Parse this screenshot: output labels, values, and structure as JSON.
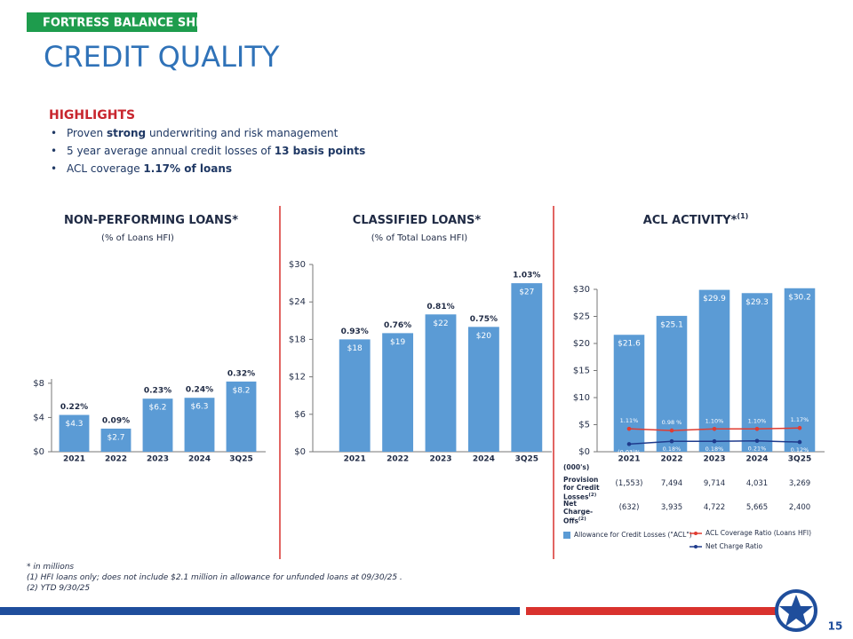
{
  "header": {
    "tag": "FORTRESS BALANCE SHEET",
    "title": "CREDIT QUALITY"
  },
  "highlights": {
    "title": "HIGHLIGHTS",
    "bullets": [
      [
        {
          "text": "Proven "
        },
        {
          "text": "strong",
          "bold": true
        },
        {
          "text": " underwriting and risk management"
        }
      ],
      [
        {
          "text": "5 year average annual credit losses of "
        },
        {
          "text": "13 basis points",
          "bold": true
        }
      ],
      [
        {
          "text": "ACL coverage "
        },
        {
          "text": "1.17% of loans",
          "bold": true
        }
      ]
    ]
  },
  "chart_data": [
    {
      "type": "bar",
      "title": "NON-PERFORMING LOANS*",
      "subtitle": "(% of Loans HFI)",
      "categories": [
        "2021",
        "2022",
        "2023",
        "2024",
        "3Q25"
      ],
      "values": [
        4.3,
        2.7,
        6.2,
        6.3,
        8.2
      ],
      "value_labels": [
        "$4.3",
        "$2.7",
        "$6.2",
        "$6.3",
        "$8.2"
      ],
      "color": "#5b9bd5",
      "ratios": [
        0.22,
        0.09,
        0.23,
        0.24,
        0.32
      ],
      "ratio_labels": [
        "0.22%",
        "0.09%",
        "0.23%",
        "0.24%",
        "0.32%"
      ],
      "ylim": [
        0,
        8.5
      ],
      "yticks": [
        {
          "value": 0,
          "label": "$0"
        },
        {
          "value": 4,
          "label": "$4"
        },
        {
          "value": 8,
          "label": "$8"
        }
      ]
    },
    {
      "type": "bar",
      "title": "CLASSIFIED LOANS*",
      "subtitle": "(% of Total Loans HFI)",
      "categories": [
        "2021",
        "2022",
        "2023",
        "2024",
        "3Q25"
      ],
      "values": [
        18,
        19,
        22,
        20,
        27
      ],
      "value_labels": [
        "$18",
        "$19",
        "$22",
        "$20",
        "$27"
      ],
      "color": "#5b9bd5",
      "ratios": [
        0.93,
        0.76,
        0.81,
        0.75,
        1.03
      ],
      "ratio_labels": [
        "0.93%",
        "0.76%",
        "0.81%",
        "0.75%",
        "1.03%"
      ],
      "ylim": [
        0,
        30
      ],
      "yticks": [
        {
          "value": 0,
          "label": "$0"
        },
        {
          "value": 6,
          "label": "$6"
        },
        {
          "value": 12,
          "label": "$12"
        },
        {
          "value": 18,
          "label": "$18"
        },
        {
          "value": 24,
          "label": "$24"
        },
        {
          "value": 30,
          "label": "$30"
        }
      ]
    },
    {
      "type": "bar",
      "title": "ACL ACTIVITY*",
      "title_note": "(1)",
      "categories": [
        "2021",
        "2022",
        "2023",
        "2024",
        "3Q25"
      ],
      "series": [
        {
          "name": "Allowance for Credit Losses (\"ACL\")",
          "color": "#5b9bd5",
          "values": [
            21.6,
            25.1,
            29.9,
            29.3,
            30.2
          ],
          "value_labels": [
            "$21.6",
            "$25.1",
            "$29.9",
            "$29.3",
            "$30.2"
          ]
        },
        {
          "name": "ACL Coverage Ratio (Loans HFI)",
          "type": "line",
          "axis": "y2",
          "color": "#e03c31",
          "values": [
            1.11,
            0.98,
            1.1,
            1.1,
            1.17
          ],
          "value_labels": [
            "1.11%",
            "0.98 %",
            "1.10%",
            "1.10%",
            "1.17%"
          ]
        },
        {
          "name": "Net Charge Ratio",
          "type": "line",
          "axis": "y2",
          "color": "#1f3b8c",
          "values": [
            -0.03,
            0.18,
            0.18,
            0.21,
            0.12
          ],
          "value_labels": [
            "(0.03)%",
            "0.18%",
            "0.18%",
            "0.21%",
            "0.12%"
          ]
        }
      ],
      "ylim": [
        0,
        30
      ],
      "yticks": [
        {
          "value": 0,
          "label": "$0"
        },
        {
          "value": 5,
          "label": "$5"
        },
        {
          "value": 10,
          "label": "$10"
        },
        {
          "value": 15,
          "label": "$15"
        },
        {
          "value": 20,
          "label": "$20"
        },
        {
          "value": 25,
          "label": "$25"
        },
        {
          "value": 30,
          "label": "$30"
        }
      ],
      "y2lim": [
        -0.6,
        11.5
      ]
    }
  ],
  "acl_table": {
    "unit": "(000's)",
    "rows": [
      {
        "label": "Provision for Credit Losses",
        "note": "(2)",
        "values": [
          "(1,553)",
          "7,494",
          "9,714",
          "4,031",
          "3,269"
        ]
      },
      {
        "label": "Net Charge-Offs",
        "note": "(2)",
        "values": [
          "(632)",
          "3,935",
          "4,722",
          "5,665",
          "2,400"
        ]
      }
    ]
  },
  "footnotes": [
    "* in millions",
    "(1) HFI loans only; does not include $2.1 million in allowance for unfunded loans at 09/30/25 .",
    "(2) YTD 9/30/25"
  ],
  "page_number": "15"
}
